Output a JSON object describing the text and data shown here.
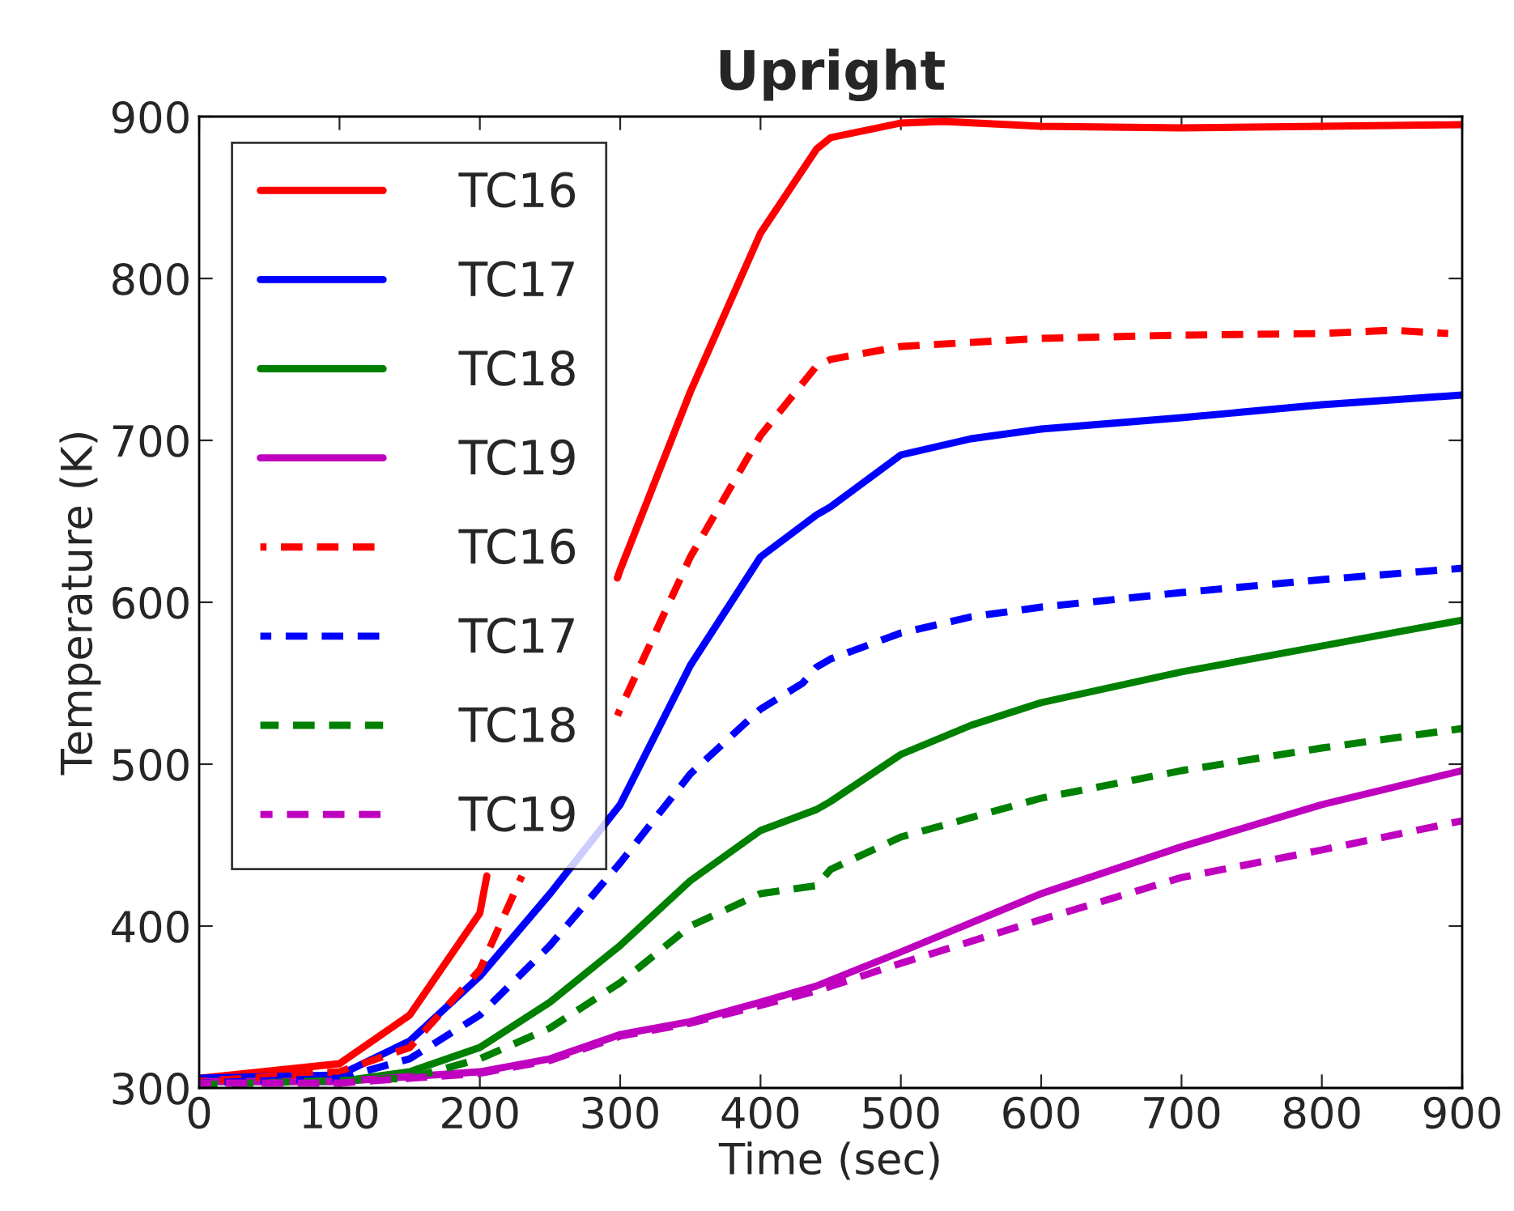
{
  "chart_data": {
    "type": "line",
    "title": "Upright",
    "xlabel": "Time (sec)",
    "ylabel": "Temperature (K)",
    "xlim": [
      0,
      900
    ],
    "ylim": [
      300,
      900
    ],
    "xticks": [
      0,
      100,
      200,
      300,
      400,
      500,
      600,
      700,
      800,
      900
    ],
    "yticks": [
      300,
      400,
      500,
      600,
      700,
      800,
      900
    ],
    "grid": false,
    "legend": "top left",
    "marker": "none",
    "series": [
      {
        "name": "TC16",
        "color": "#ff0000",
        "line_style": "solid",
        "x": [
          0,
          100,
          150,
          200,
          205,
          250,
          298,
          300,
          350,
          400,
          440,
          450,
          500,
          530,
          600,
          700,
          800,
          900
        ],
        "values": [
          306,
          315,
          345,
          408,
          431,
          null,
          615,
          620,
          730,
          828,
          880,
          887,
          896,
          897,
          894,
          893,
          894,
          895
        ]
      },
      {
        "name": "TC17",
        "color": "#0000ff",
        "line_style": "solid",
        "x": [
          0,
          100,
          150,
          200,
          250,
          300,
          350,
          400,
          440,
          450,
          500,
          550,
          600,
          700,
          800,
          900
        ],
        "values": [
          306,
          308,
          329,
          369,
          420,
          475,
          561,
          628,
          654,
          659,
          691,
          701,
          707,
          714,
          722,
          728
        ]
      },
      {
        "name": "TC18",
        "color": "#008000",
        "line_style": "solid",
        "x": [
          0,
          100,
          150,
          200,
          250,
          300,
          350,
          400,
          440,
          450,
          500,
          550,
          600,
          700,
          800,
          900
        ],
        "values": [
          304,
          304,
          310,
          325,
          353,
          388,
          428,
          459,
          472,
          477,
          506,
          524,
          538,
          557,
          573,
          589
        ]
      },
      {
        "name": "TC19",
        "color": "#bf00bf",
        "line_style": "solid",
        "x": [
          0,
          100,
          200,
          250,
          300,
          350,
          400,
          440,
          500,
          600,
          700,
          800,
          900
        ],
        "values": [
          304,
          304,
          310,
          318,
          333,
          341,
          353,
          363,
          384,
          420,
          449,
          475,
          496
        ]
      },
      {
        "name": "TC16",
        "color": "#ff0000",
        "line_style": "dashed",
        "x": [
          0,
          100,
          150,
          200,
          230,
          260,
          298,
          300,
          350,
          400,
          440,
          450,
          500,
          600,
          700,
          800,
          850,
          890
        ],
        "values": [
          304,
          310,
          325,
          373,
          431,
          null,
          530,
          534,
          628,
          703,
          746,
          750,
          758,
          763,
          765,
          766,
          768,
          766
        ]
      },
      {
        "name": "TC17",
        "color": "#0000ff",
        "line_style": "dashed",
        "x": [
          0,
          100,
          150,
          200,
          250,
          300,
          350,
          400,
          430,
          440,
          450,
          500,
          550,
          600,
          700,
          800,
          900
        ],
        "values": [
          303,
          306,
          318,
          345,
          388,
          439,
          494,
          534,
          550,
          560,
          565,
          581,
          591,
          597,
          606,
          614,
          621
        ]
      },
      {
        "name": "TC18",
        "color": "#008000",
        "line_style": "dashed",
        "x": [
          0,
          150,
          200,
          250,
          300,
          350,
          400,
          440,
          450,
          500,
          600,
          700,
          800,
          900
        ],
        "values": [
          302,
          306,
          318,
          337,
          365,
          400,
          420,
          425,
          435,
          455,
          479,
          496,
          510,
          522
        ]
      },
      {
        "name": "TC19",
        "color": "#bf00bf",
        "line_style": "dashed",
        "x": [
          0,
          100,
          200,
          250,
          300,
          350,
          400,
          440,
          500,
          600,
          700,
          800,
          900
        ],
        "values": [
          303,
          303,
          309,
          317,
          332,
          340,
          351,
          360,
          377,
          404,
          430,
          447,
          465
        ]
      }
    ]
  }
}
